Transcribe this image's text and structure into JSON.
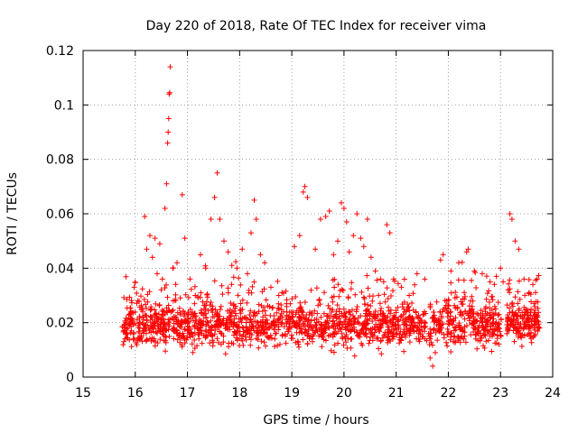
{
  "chart_data": {
    "type": "scatter",
    "title": "Day 220 of 2018, Rate Of TEC Index for receiver vima",
    "xlabel": "GPS time / hours",
    "ylabel": "ROTI / TECUs",
    "xlim": [
      15,
      24
    ],
    "ylim": [
      0,
      0.12
    ],
    "xticks": [
      "15",
      "16",
      "17",
      "18",
      "19",
      "20",
      "21",
      "22",
      "23",
      "24"
    ],
    "yticks": [
      "0",
      "0.02",
      "0.04",
      "0.06",
      "0.08",
      "0.1",
      "0.12"
    ],
    "grid": true,
    "marker": "+",
    "color": "#ff0000",
    "series": [
      {
        "name": "ROTI",
        "points": [
          [
            15.78,
            0.013
          ],
          [
            15.85,
            0.018
          ],
          [
            15.92,
            0.021
          ],
          [
            15.98,
            0.033
          ],
          [
            16.05,
            0.028
          ],
          [
            16.12,
            0.015
          ],
          [
            16.18,
            0.059
          ],
          [
            16.22,
            0.047
          ],
          [
            16.28,
            0.052
          ],
          [
            16.33,
            0.044
          ],
          [
            16.38,
            0.051
          ],
          [
            16.42,
            0.038
          ],
          [
            16.47,
            0.049
          ],
          [
            16.52,
            0.036
          ],
          [
            16.57,
            0.062
          ],
          [
            16.6,
            0.071
          ],
          [
            16.62,
            0.086
          ],
          [
            16.63,
            0.09
          ],
          [
            16.64,
            0.095
          ],
          [
            16.65,
            0.104
          ],
          [
            16.66,
            0.1045
          ],
          [
            16.67,
            0.114
          ],
          [
            16.72,
            0.04
          ],
          [
            16.8,
            0.042
          ],
          [
            16.9,
            0.067
          ],
          [
            16.95,
            0.051
          ],
          [
            17.05,
            0.036
          ],
          [
            17.15,
            0.03
          ],
          [
            17.25,
            0.045
          ],
          [
            17.35,
            0.04
          ],
          [
            17.45,
            0.058
          ],
          [
            17.52,
            0.066
          ],
          [
            17.57,
            0.075
          ],
          [
            17.62,
            0.058
          ],
          [
            17.7,
            0.05
          ],
          [
            17.78,
            0.046
          ],
          [
            17.85,
            0.041
          ],
          [
            17.95,
            0.04
          ],
          [
            18.05,
            0.047
          ],
          [
            18.15,
            0.038
          ],
          [
            18.22,
            0.053
          ],
          [
            18.28,
            0.065
          ],
          [
            18.32,
            0.058
          ],
          [
            18.4,
            0.045
          ],
          [
            18.48,
            0.042
          ],
          [
            18.6,
            0.033
          ],
          [
            18.75,
            0.03
          ],
          [
            18.9,
            0.027
          ],
          [
            19.05,
            0.048
          ],
          [
            19.15,
            0.052
          ],
          [
            19.22,
            0.068
          ],
          [
            19.25,
            0.07
          ],
          [
            19.3,
            0.066
          ],
          [
            19.45,
            0.047
          ],
          [
            19.55,
            0.058
          ],
          [
            19.65,
            0.059
          ],
          [
            19.72,
            0.061
          ],
          [
            19.8,
            0.045
          ],
          [
            19.88,
            0.05
          ],
          [
            19.95,
            0.064
          ],
          [
            20.0,
            0.062
          ],
          [
            20.05,
            0.057
          ],
          [
            20.1,
            0.046
          ],
          [
            20.18,
            0.052
          ],
          [
            20.25,
            0.06
          ],
          [
            20.32,
            0.051
          ],
          [
            20.38,
            0.048
          ],
          [
            20.45,
            0.058
          ],
          [
            20.52,
            0.044
          ],
          [
            20.6,
            0.039
          ],
          [
            20.7,
            0.036
          ],
          [
            20.82,
            0.056
          ],
          [
            20.88,
            0.053
          ],
          [
            20.95,
            0.036
          ],
          [
            21.1,
            0.033
          ],
          [
            21.25,
            0.03
          ],
          [
            21.4,
            0.038
          ],
          [
            21.55,
            0.036
          ],
          [
            21.65,
            0.007
          ],
          [
            21.7,
            0.004
          ],
          [
            21.75,
            0.009
          ],
          [
            21.85,
            0.043
          ],
          [
            21.9,
            0.045
          ],
          [
            22.05,
            0.039
          ],
          [
            22.2,
            0.042
          ],
          [
            22.35,
            0.046
          ],
          [
            22.38,
            0.047
          ],
          [
            22.5,
            0.039
          ],
          [
            22.65,
            0.038
          ],
          [
            22.8,
            0.035
          ],
          [
            22.92,
            0.037
          ],
          [
            23.0,
            0.04
          ],
          [
            23.05,
            0.035
          ],
          [
            23.18,
            0.06
          ],
          [
            23.22,
            0.058
          ],
          [
            23.28,
            0.05
          ],
          [
            23.35,
            0.047
          ],
          [
            23.45,
            0.036
          ],
          [
            23.55,
            0.031
          ],
          [
            23.62,
            0.034
          ],
          [
            23.7,
            0.036
          ]
        ],
        "dense_bands": [
          {
            "x_from": 15.75,
            "x_to": 23.02,
            "y_center": 0.019,
            "y_spread": 0.008,
            "count": 1700
          },
          {
            "x_from": 23.12,
            "x_to": 23.75,
            "y_center": 0.02,
            "y_spread": 0.007,
            "count": 180
          }
        ]
      }
    ]
  }
}
